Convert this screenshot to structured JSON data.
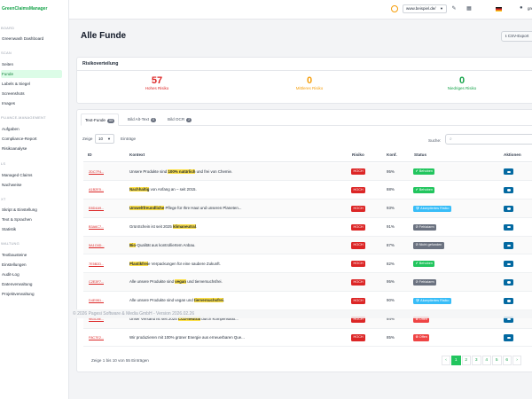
{
  "app": {
    "logo": "GreenClaimsManager"
  },
  "sidebar": {
    "sections": {
      "board": "BOARD",
      "scan": "SCAN",
      "compliance": "PLIANCE-MANAGEMENT",
      "claims": "LS",
      "text": "XT",
      "admin": "WALTUNG"
    },
    "items": [
      "Greenwash Dashboard",
      "Seiten",
      "Funde",
      "Labels & Siegel",
      "Screenshots",
      "Images",
      "Aufgaben",
      "Compliance-Report",
      "Risikoanalyse",
      "Managed Claims",
      "Nachweise",
      "Skript & Einstellung",
      "Text & Sprachen",
      "Statistik",
      "Textbausteine",
      "Einstellungen",
      "Audit-Log",
      "Datenverwaltung",
      "Projektverwaltung"
    ]
  },
  "topbar": {
    "site": "www.beispiel.de/",
    "user": "greenw"
  },
  "page": {
    "title": "Alle Funde",
    "csv_button": "CSV-Export"
  },
  "risk": {
    "heading": "Risikoverteilung",
    "high": {
      "count": "57",
      "label": "Hohes Risiko"
    },
    "medium": {
      "count": "0",
      "label": "Mittleres Risiko"
    },
    "low": {
      "count": "0",
      "label": "Niedriges Risiko"
    }
  },
  "tabs": [
    {
      "label": "Text-Funde",
      "count": "55"
    },
    {
      "label": "Bild Alt-Text",
      "count": "0"
    },
    {
      "label": "Bild OCR",
      "count": "2"
    }
  ],
  "controls": {
    "show": "Zeige",
    "entries_value": "10",
    "entries": "Einträge",
    "search": "Suche:"
  },
  "table": {
    "headers": [
      "ID",
      "Kontext",
      "Risiko",
      "Konf.",
      "Status",
      "Aktionen"
    ],
    "rows": [
      {
        "id": "2DC7F4...",
        "pre": "Unsere Produkte sind ",
        "hl": "100% natürlich",
        "post": " und frei von Chemie.",
        "risk": "HOCH",
        "conf": "95%",
        "status": "Behoben"
      },
      {
        "id": "A1B2E5...",
        "pre": "",
        "hl": "Nachhaltig",
        "post": " von Anfang an – seit 2015.",
        "risk": "HOCH",
        "conf": "88%",
        "status": "Behoben"
      },
      {
        "id": "E8D4A9...",
        "pre": "",
        "hl": "Umweltfreundliche",
        "post": " Pflege für Ihre Haut und unseren Planeten...",
        "risk": "HOCH",
        "conf": "93%",
        "status": "Akzeptiertes Risiko"
      },
      {
        "id": "B3A6C7...",
        "pre": "GrünSchein ist seit 2025 ",
        "hl": "klimaneutral",
        "post": ".",
        "risk": "HOCH",
        "conf": "91%",
        "status": "Fehlalarm"
      },
      {
        "id": "5A1C6D...",
        "pre": "",
        "hl": "Bio",
        "post": "-Qualität aus kontrolliertem Anbau.",
        "risk": "HOCH",
        "conf": "87%",
        "status": "Nicht gefunden"
      },
      {
        "id": "7E5B2D...",
        "pre": "",
        "hl": "Plastikfrei",
        "post": "e Verpackungen für eine saubere Zukunft.",
        "risk": "HOCH",
        "conf": "82%",
        "status": "Behoben"
      },
      {
        "id": "C2E3F7...",
        "pre": "Alle unsere Produkte sind ",
        "hl": "vegan",
        "post": " und tierversuchsfrei.",
        "risk": "HOCH",
        "conf": "95%",
        "status": "Fehlalarm"
      },
      {
        "id": "D4E9B1...",
        "pre": "Alle unsere Produkte sind vegan und ",
        "hl": "tierversuchsfrei",
        "post": ".",
        "risk": "HOCH",
        "conf": "90%",
        "status": "Akzeptiertes Risiko"
      },
      {
        "id": "9B3C8E...",
        "pre": "Unser Versand ist seit 2025 ",
        "hl": "CO2-neutral",
        "post": " durch Kompensatio...",
        "risk": "HOCH",
        "conf": "94%",
        "status": "Offen"
      },
      {
        "id": "F8C7E2...",
        "pre": "Wir produzieren mit 100% grüner Energie aus erneuerbaren Que...",
        "hl": "",
        "post": "",
        "risk": "HOCH",
        "conf": "85%",
        "status": "Offen"
      }
    ]
  },
  "footer": "© 2026 Pagesi Software & Media GmbH - Version 2026.02.26",
  "pagination": {
    "info": "Zeige 1 bis 10 von 55 Einträgen",
    "prev": "‹",
    "pages": [
      "1",
      "2",
      "3",
      "4",
      "5",
      "6"
    ],
    "next": "›"
  },
  "colors": {
    "high": "#dc2626",
    "medium": "#f59e0b",
    "low": "#16a34a",
    "status": {
      "Behoben": "#22c55e",
      "Akzeptiertes Risiko": "#38bdf8",
      "Fehlalarm": "#6b7280",
      "Nicht gefunden": "#6b7280",
      "Offen": "#ef4444"
    }
  },
  "icons": {
    "theme": "sun-icon",
    "edit": "pencil-icon",
    "grid": "apps-icon",
    "user": "user-icon",
    "status": {
      "Behoben": "✔",
      "Akzeptiertes Risiko": "🛡",
      "Fehlalarm": "⊘",
      "Nicht gefunden": "⊘",
      "Offen": "⊗"
    }
  }
}
